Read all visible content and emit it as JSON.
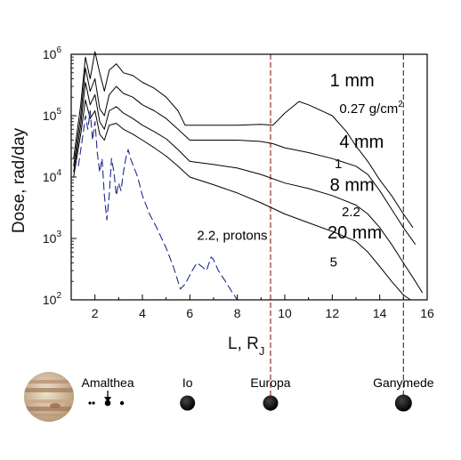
{
  "chart_data": {
    "type": "line",
    "xlabel": "L, R",
    "xlabel_sub": "J",
    "ylabel": "Dose, rad/day",
    "xlim": [
      1,
      16
    ],
    "ylim_log10": [
      2,
      6
    ],
    "x_ticks": [
      "2",
      "4",
      "6",
      "8",
      "10",
      "12",
      "14",
      "16"
    ],
    "y_ticks": [
      {
        "base": "10",
        "exp": "2"
      },
      {
        "base": "10",
        "exp": "3"
      },
      {
        "base": "10",
        "exp": "4"
      },
      {
        "base": "10",
        "exp": "5"
      },
      {
        "base": "10",
        "exp": "6"
      }
    ],
    "series": [
      {
        "style": "solid",
        "color": "#000000",
        "x": [
          1.1,
          1.4,
          1.6,
          1.8,
          2.0,
          2.2,
          2.4,
          2.6,
          2.9,
          3.2,
          3.6,
          4.0,
          4.5,
          5.0,
          5.5,
          5.8,
          6.0,
          7.0,
          8.0,
          9.0,
          9.5,
          10.0,
          10.6,
          11.0,
          12.0,
          12.6,
          13.0,
          13.5,
          14.0,
          14.5,
          15.0,
          15.4
        ],
        "y": [
          20000,
          150000,
          900000,
          400000,
          1100000,
          500000,
          250000,
          550000,
          700000,
          500000,
          450000,
          350000,
          280000,
          200000,
          120000,
          70000,
          70000,
          70000,
          70000,
          72000,
          70000,
          110000,
          170000,
          150000,
          100000,
          55000,
          32000,
          18000,
          9000,
          5000,
          2500,
          1500
        ]
      },
      {
        "style": "solid",
        "color": "#000000",
        "x": [
          1.1,
          1.4,
          1.6,
          1.8,
          2.0,
          2.2,
          2.4,
          2.6,
          2.9,
          3.2,
          3.6,
          4.0,
          4.5,
          5.0,
          5.5,
          6.0,
          7.0,
          8.0,
          9.0,
          9.5,
          10.0,
          11.0,
          12.0,
          13.0,
          13.5,
          14.0,
          14.5,
          15.0,
          15.5
        ],
        "y": [
          15000,
          100000,
          600000,
          250000,
          400000,
          130000,
          100000,
          220000,
          300000,
          230000,
          200000,
          150000,
          120000,
          90000,
          60000,
          40000,
          40000,
          40000,
          38000,
          35000,
          30000,
          25000,
          20000,
          15000,
          11000,
          6000,
          3000,
          1500,
          800
        ]
      },
      {
        "style": "solid",
        "color": "#000000",
        "x": [
          1.1,
          1.4,
          1.6,
          1.8,
          2.0,
          2.2,
          2.4,
          2.6,
          2.9,
          3.2,
          3.6,
          4.0,
          4.5,
          5.0,
          5.5,
          6.0,
          7.0,
          8.0,
          9.0,
          10.0,
          11.0,
          12.0,
          13.0,
          13.5,
          14.0,
          14.5,
          15.0,
          15.5,
          15.8
        ],
        "y": [
          12000,
          70000,
          350000,
          150000,
          220000,
          80000,
          60000,
          120000,
          140000,
          110000,
          90000,
          70000,
          55000,
          42000,
          28000,
          18000,
          16000,
          14000,
          11000,
          8000,
          6500,
          5000,
          3500,
          2500,
          1500,
          800,
          400,
          200,
          130
        ]
      },
      {
        "style": "solid",
        "color": "#000000",
        "x": [
          1.1,
          1.4,
          1.6,
          1.8,
          2.0,
          2.2,
          2.4,
          2.6,
          2.9,
          3.2,
          3.6,
          4.0,
          4.5,
          5.0,
          5.5,
          6.0,
          7.0,
          8.0,
          9.0,
          10.0,
          11.0,
          12.0,
          13.0,
          13.5,
          14.0,
          14.5,
          15.0,
          15.3
        ],
        "y": [
          10000,
          50000,
          180000,
          90000,
          120000,
          50000,
          40000,
          70000,
          75000,
          60000,
          50000,
          40000,
          30000,
          22000,
          15000,
          10000,
          7500,
          5500,
          3800,
          2500,
          1800,
          1300,
          900,
          600,
          350,
          200,
          120,
          100
        ]
      },
      {
        "name": "2.2, protons",
        "style": "dashed",
        "color": "#1f2a8c",
        "x": [
          1.3,
          1.5,
          1.6,
          1.7,
          1.8,
          1.9,
          2.0,
          2.1,
          2.2,
          2.3,
          2.4,
          2.5,
          2.6,
          2.7,
          2.8,
          2.9,
          3.0,
          3.1,
          3.2,
          3.3,
          3.4,
          3.5,
          3.8,
          4.0,
          4.3,
          4.6,
          5.0,
          5.3,
          5.6,
          5.8,
          6.1,
          6.3,
          6.5,
          6.7,
          6.9,
          7.0,
          7.2,
          7.5,
          7.8,
          8.0
        ],
        "y": [
          15000,
          50000,
          100000,
          60000,
          120000,
          40000,
          80000,
          25000,
          12000,
          20000,
          5000,
          2000,
          5000,
          20000,
          12000,
          5000,
          8000,
          6000,
          12000,
          20000,
          28000,
          20000,
          10000,
          5000,
          2500,
          1500,
          700,
          350,
          150,
          180,
          300,
          400,
          350,
          300,
          500,
          450,
          300,
          200,
          130,
          100
        ]
      }
    ],
    "annotations": [
      {
        "text": "1 mm",
        "x": 11.9,
        "y": 300000,
        "size": 20
      },
      {
        "text": "0.27 g/cm",
        "sup": "2",
        "x": 12.3,
        "y": 110000,
        "size": 15
      },
      {
        "text": "4 mm",
        "x": 12.3,
        "y": 30000,
        "size": 20
      },
      {
        "text": "1",
        "x": 12.1,
        "y": 14000,
        "size": 15
      },
      {
        "text": "8 mm",
        "x": 11.9,
        "y": 6000,
        "size": 20
      },
      {
        "text": "2.2",
        "x": 12.4,
        "y": 2300,
        "size": 15
      },
      {
        "text": "20 mm",
        "x": 11.8,
        "y": 1000,
        "size": 20
      },
      {
        "text": "5",
        "x": 11.9,
        "y": 350,
        "size": 15
      },
      {
        "text": "2.2, protons",
        "x": 6.3,
        "y": 950,
        "size": 15,
        "color": "#1f2a8c"
      }
    ],
    "vlines": [
      {
        "x": 9.4,
        "color": "#8b1a1a"
      },
      {
        "x": 15.0,
        "color": "#1f2a8c"
      }
    ]
  },
  "moons": [
    {
      "name": "Amalthea",
      "x": 2.54,
      "marker": "arrow"
    },
    {
      "name": "Io",
      "x": 5.9
    },
    {
      "name": "Europa",
      "x": 9.4
    },
    {
      "name": "Ganymede",
      "x": 15.0
    }
  ]
}
